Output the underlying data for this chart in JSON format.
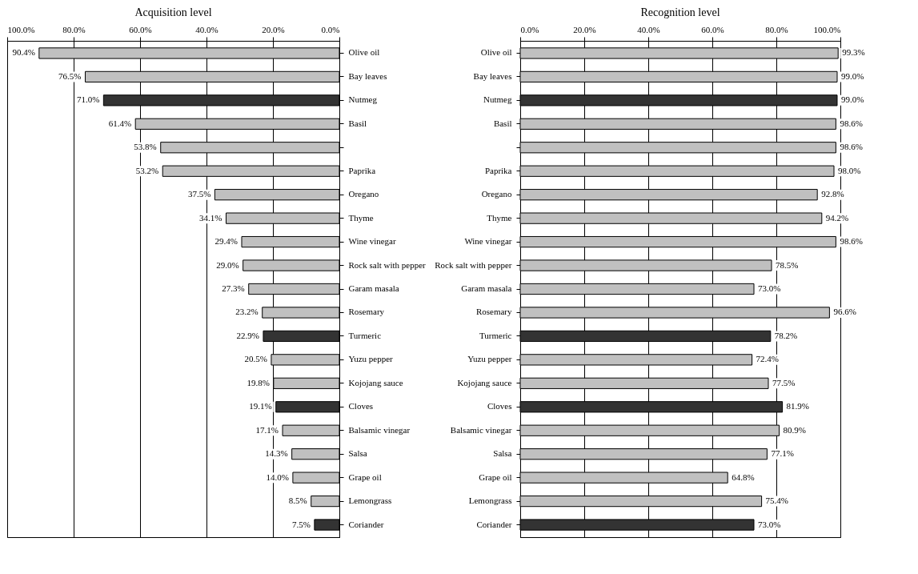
{
  "chart_data": [
    {
      "type": "bar",
      "orientation": "horizontal",
      "title": "Acquisition level",
      "categories": [
        "Olive oil",
        "Bay leaves",
        "Nutmeg",
        "Basil",
        null,
        "Paprika",
        "Oregano",
        "Thyme",
        "Wine vinegar",
        "Rock salt with pepper",
        "Garam masala",
        "Rosemary",
        "Turmeric",
        "Yuzu pepper",
        "Kojojang sauce",
        "Cloves",
        "Balsamic vinegar",
        "Salsa",
        "Grape oil",
        "Lemongrass",
        "Coriander"
      ],
      "values": [
        90.4,
        76.5,
        71.0,
        61.4,
        53.8,
        53.2,
        37.5,
        34.1,
        29.4,
        29.0,
        27.3,
        23.2,
        22.9,
        20.5,
        19.8,
        19.1,
        17.1,
        14.3,
        14.0,
        8.5,
        7.5
      ],
      "value_labels": [
        "90.4%",
        "76.5%",
        "71.0%",
        "61.4%",
        "53.8%",
        "53.2%",
        "37.5%",
        "34.1%",
        "29.4%",
        "29.0%",
        "27.3%",
        "23.2%",
        "22.9%",
        "20.5%",
        "19.8%",
        "19.1%",
        "17.1%",
        "14.3%",
        "14.0%",
        "8.5%",
        "7.5%"
      ],
      "colors": [
        "#c0c0c0",
        "#c0c0c0",
        "#333333",
        "#c0c0c0",
        "#c0c0c0",
        "#c0c0c0",
        "#c0c0c0",
        "#c0c0c0",
        "#c0c0c0",
        "#c0c0c0",
        "#c0c0c0",
        "#c0c0c0",
        "#333333",
        "#c0c0c0",
        "#c0c0c0",
        "#333333",
        "#c0c0c0",
        "#c0c0c0",
        "#c0c0c0",
        "#c0c0c0",
        "#333333"
      ],
      "xlim": [
        100,
        0
      ],
      "xticks": [
        {
          "value": 100,
          "label": "100.0%"
        },
        {
          "value": 80,
          "label": "80.0%"
        },
        {
          "value": 60,
          "label": "60.0%"
        },
        {
          "value": 40,
          "label": "40.0%"
        },
        {
          "value": 20,
          "label": "20.0%"
        },
        {
          "value": 0,
          "label": "0.0%"
        }
      ],
      "grid": "x"
    },
    {
      "type": "bar",
      "orientation": "horizontal",
      "title": "Recognition level",
      "categories": [
        "Olive oil",
        "Bay leaves",
        "Nutmeg",
        "Basil",
        null,
        "Paprika",
        "Oregano",
        "Thyme",
        "Wine vinegar",
        "Rock salt with pepper",
        "Garam masala",
        "Rosemary",
        "Turmeric",
        "Yuzu pepper",
        "Kojojang sauce",
        "Cloves",
        "Balsamic vinegar",
        "Salsa",
        "Grape oil",
        "Lemongrass",
        "Coriander"
      ],
      "values": [
        99.3,
        99.0,
        99.0,
        98.6,
        98.6,
        98.0,
        92.8,
        94.2,
        98.6,
        78.5,
        73.0,
        96.6,
        78.2,
        72.4,
        77.5,
        81.9,
        80.9,
        77.1,
        64.8,
        75.4,
        73.0
      ],
      "value_labels": [
        "99.3%",
        "99.0%",
        "99.0%",
        "98.6%",
        "98.6%",
        "98.0%",
        "92.8%",
        "94.2%",
        "98.6%",
        "78.5%",
        "73.0%",
        "96.6%",
        "78.2%",
        "72.4%",
        "77.5%",
        "81.9%",
        "80.9%",
        "77.1%",
        "64.8%",
        "75.4%",
        "73.0%"
      ],
      "colors": [
        "#c0c0c0",
        "#c0c0c0",
        "#333333",
        "#c0c0c0",
        "#c0c0c0",
        "#c0c0c0",
        "#c0c0c0",
        "#c0c0c0",
        "#c0c0c0",
        "#c0c0c0",
        "#c0c0c0",
        "#c0c0c0",
        "#333333",
        "#c0c0c0",
        "#c0c0c0",
        "#333333",
        "#c0c0c0",
        "#c0c0c0",
        "#c0c0c0",
        "#c0c0c0",
        "#333333"
      ],
      "xlim": [
        0,
        100
      ],
      "xticks": [
        {
          "value": 0,
          "label": "0.0%"
        },
        {
          "value": 20,
          "label": "20.0%"
        },
        {
          "value": 40,
          "label": "40.0%"
        },
        {
          "value": 60,
          "label": "60.0%"
        },
        {
          "value": 80,
          "label": "80.0%"
        },
        {
          "value": 100,
          "label": "100.0%"
        }
      ],
      "grid": "x"
    }
  ]
}
